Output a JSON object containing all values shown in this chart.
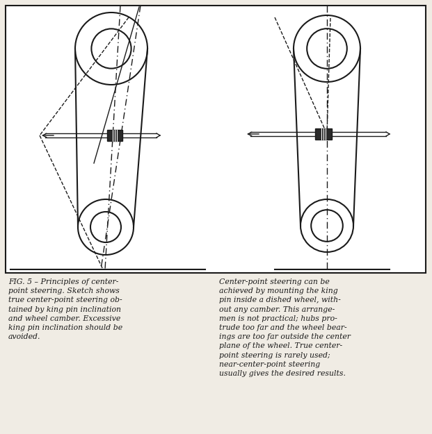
{
  "bg_color": "#f0ece4",
  "line_color": "#1a1a1a",
  "dark_fill": "#2a2a2a",
  "caption_left": "FIG. 5 – Principles of center-\npoint steering. Sketch shows\ntrue center-point steering ob-\ntained by king pin inclination\nand wheel camber. Excessive\nking pin inclination should be\navoided.",
  "caption_right": "Center-point steering can be\nachieved by mounting the king\npin inside a dished wheel, with-\nout any camber. This arrange-\nmen is not practical; hubs pro-\ntrude too far and the wheel bear-\nings are too far outside the center\nplane of the wheel. True center-\npoint steering is rarely used;\nnear-center-point steering\nusually gives the desired results.",
  "fig_width": 6.21,
  "fig_height": 6.25,
  "dpi": 100
}
